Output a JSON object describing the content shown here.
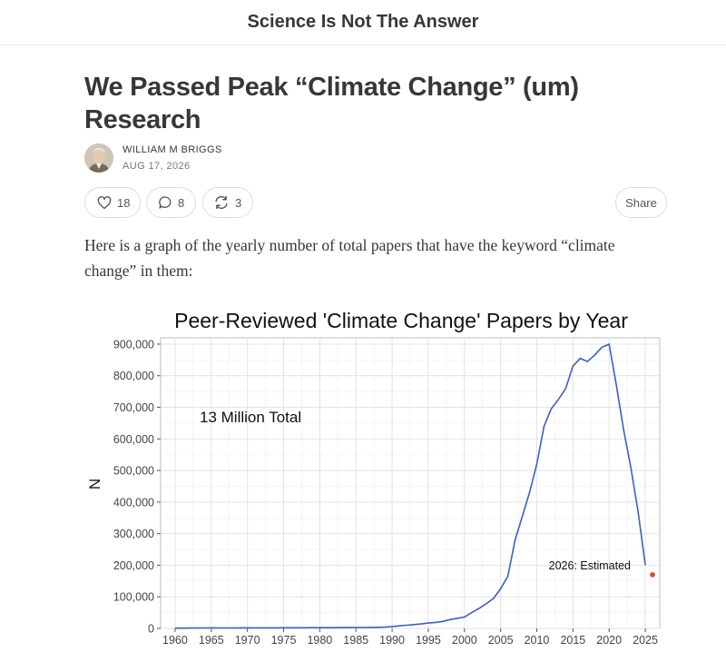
{
  "publication": {
    "title": "Science Is Not The Answer"
  },
  "article": {
    "headline": "We Passed Peak “Climate Change” (um) Research",
    "author": "WILLIAM M BRIGGS",
    "date": "AUG 17, 2026",
    "body": "Here is a graph of the yearly number of total papers that have the keyword “climate change” in them:"
  },
  "actions": {
    "likes": "18",
    "comments": "8",
    "restacks": "3",
    "share_label": "Share",
    "icons": [
      "heart-icon",
      "comment-icon",
      "restack-icon"
    ]
  },
  "chart_data": {
    "type": "line",
    "title": "Peer-Reviewed 'Climate Change' Papers by Year",
    "xlabel": "",
    "ylabel": "N",
    "xlim": [
      1958,
      2027
    ],
    "ylim": [
      0,
      920000
    ],
    "x_ticks": [
      1960,
      1965,
      1970,
      1975,
      1980,
      1985,
      1990,
      1995,
      2000,
      2005,
      2010,
      2015,
      2020,
      2025
    ],
    "y_ticks": [
      0,
      100000,
      200000,
      300000,
      400000,
      500000,
      600000,
      700000,
      800000,
      900000
    ],
    "y_tick_labels": [
      "0",
      "100,000",
      "200,000",
      "300,000",
      "400,000",
      "500,000",
      "600,000",
      "700,000",
      "800,000",
      "900,000"
    ],
    "grid": true,
    "line_color": "#3b5fc4",
    "point_color": "#d9472b",
    "annotation_total": "13 Million Total",
    "annotation_estimate": "2026: Estimated",
    "series": [
      {
        "x": [
          1960,
          1961,
          1962,
          1963,
          1964,
          1965,
          1966,
          1967,
          1968,
          1969,
          1970,
          1971,
          1972,
          1973,
          1974,
          1975,
          1976,
          1977,
          1978,
          1979,
          1980,
          1981,
          1982,
          1983,
          1984,
          1985,
          1986,
          1987,
          1988,
          1989,
          1990,
          1991,
          1992,
          1993,
          1994,
          1995,
          1996,
          1997,
          1998,
          1999,
          2000,
          2001,
          2002,
          2003,
          2004,
          2005,
          2006,
          2007,
          2008,
          2009,
          2010,
          2011,
          2012,
          2013,
          2014,
          2015,
          2016,
          2017,
          2018,
          2019,
          2020,
          2021,
          2022,
          2023,
          2024,
          2025
        ],
        "y": [
          1000,
          1000,
          1200,
          1200,
          1300,
          1600,
          1500,
          1400,
          1500,
          1600,
          1600,
          1700,
          1700,
          1800,
          1800,
          1900,
          2000,
          2000,
          2100,
          2200,
          2300,
          2300,
          2400,
          2500,
          2600,
          2800,
          3000,
          3200,
          3500,
          4000,
          6000,
          8000,
          10000,
          12000,
          14000,
          17000,
          19000,
          22000,
          28000,
          32000,
          36000,
          50000,
          63000,
          78000,
          95000,
          125000,
          165000,
          280000,
          355000,
          430000,
          520000,
          640000,
          695000,
          725000,
          760000,
          830000,
          855000,
          845000,
          865000,
          890000,
          900000,
          770000,
          630000,
          510000,
          370000,
          200000
        ]
      }
    ],
    "estimate_point": {
      "x": 2026,
      "y": 170000
    }
  }
}
